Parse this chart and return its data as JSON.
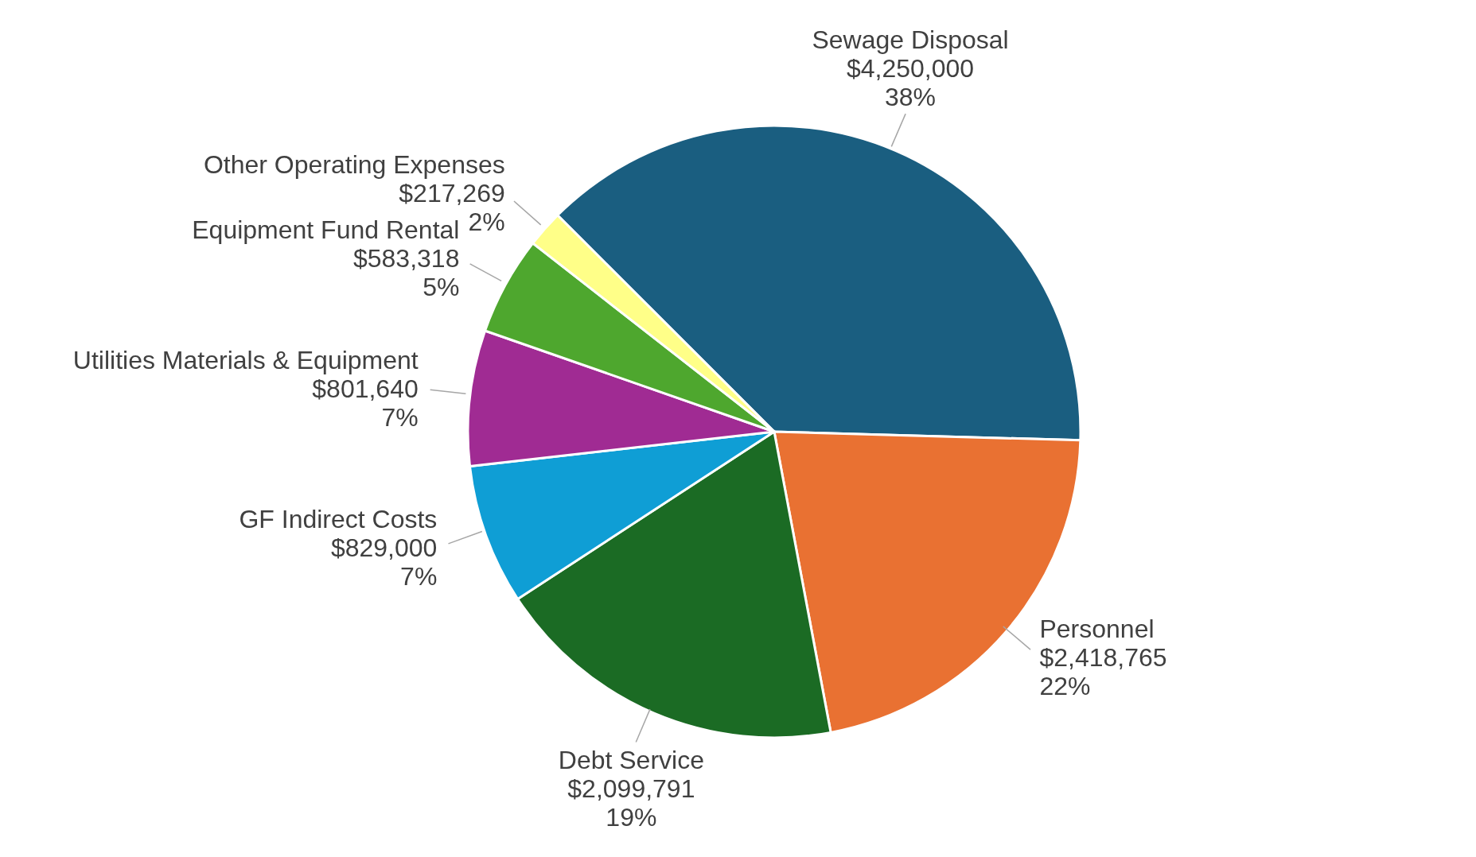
{
  "chart_data": {
    "type": "pie",
    "categories": [
      "Sewage Disposal",
      "Personnel",
      "Debt Service",
      "GF Indirect Costs",
      "Utilities Materials & Equipment",
      "Equipment Fund Rental",
      "Other Operating Expenses"
    ],
    "values": [
      4250000,
      2418765,
      2099791,
      829000,
      801640,
      583318,
      217269
    ],
    "colors": [
      "#1a5e80",
      "#e97132",
      "#1b6b24",
      "#0f9ed5",
      "#a02b93",
      "#4ea72e",
      "#ffff88"
    ],
    "value_labels": [
      "$4,250,000\n38%",
      "$2,418,765\n22%",
      "$2,099,791\n19%",
      "$829,000\n7%",
      "$801,640\n7%",
      "$583,318\n5%",
      "$217,269\n2%"
    ],
    "legend": false
  }
}
